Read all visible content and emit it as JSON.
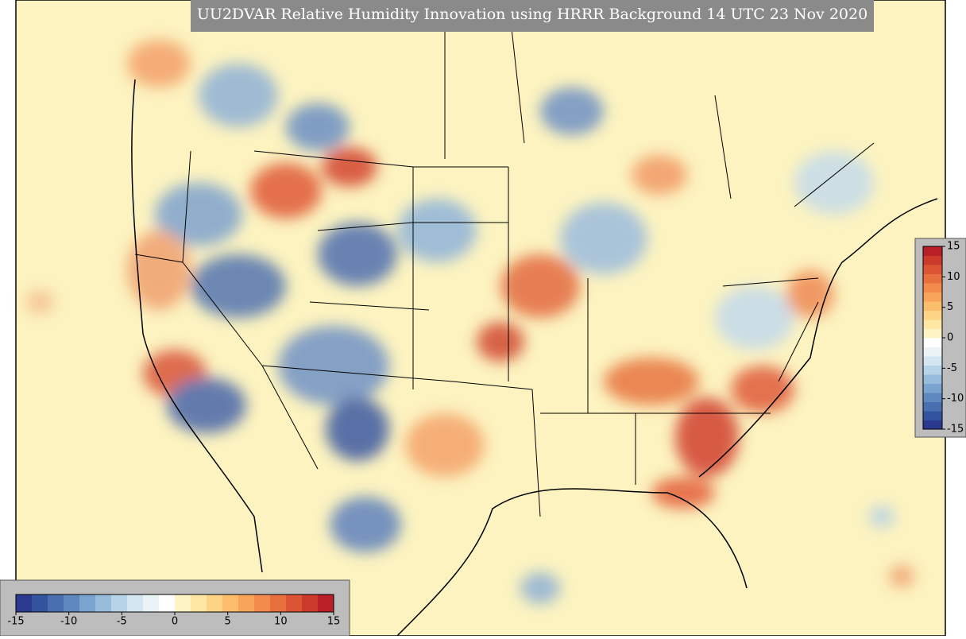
{
  "title": "UU2DVAR Relative Humidity Innovation using HRRR Background 14 UTC 23 Nov 2020",
  "colorbar_colors": [
    "#2b3a8e",
    "#34539f",
    "#4a6fb0",
    "#5f88bf",
    "#7aa3cf",
    "#98bcdc",
    "#b7d3e8",
    "#d3e6f1",
    "#eaf4f6",
    "#ffffff",
    "#fdf3c4",
    "#fde7a3",
    "#fdd485",
    "#fbbd6c",
    "#f8a45a",
    "#f28b4b",
    "#e8703f",
    "#db5535",
    "#cc3a2c",
    "#b81f27"
  ],
  "colorbar_horizontal": {
    "range": [
      -15,
      15
    ],
    "ticks": [
      -15,
      -10,
      -5,
      0,
      5,
      10,
      15
    ]
  },
  "colorbar_vertical": {
    "range": [
      -15,
      15
    ],
    "ticks": [
      15,
      10,
      5,
      0,
      -5,
      -10,
      -15
    ]
  }
}
